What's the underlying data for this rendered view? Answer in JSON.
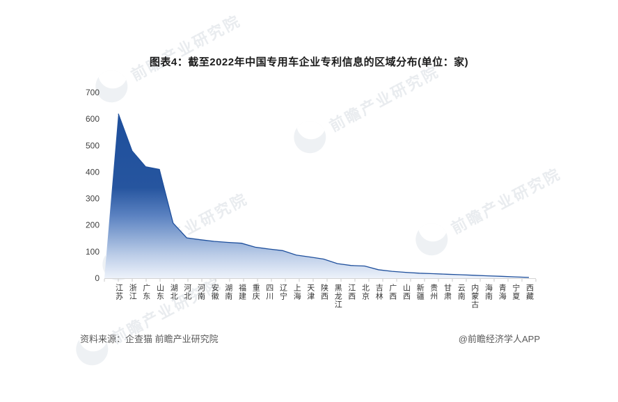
{
  "title": "图表4：截至2022年中国专用车企业专利信息的区域分布(单位：家)",
  "footer": {
    "source_note": "资料来源：企查猫 前瞻产业研究院",
    "credit": "@前瞻经济学人APP"
  },
  "watermark": {
    "text": "前瞻产业研究院"
  },
  "chart_data": {
    "type": "area",
    "title": "图表4：截至2022年中国专用车企业专利信息的区域分布(单位：家)",
    "unit": "家",
    "categories": [
      "江苏",
      "浙江",
      "广东",
      "山东",
      "湖北",
      "河北",
      "河南",
      "安徽",
      "湖南",
      "福建",
      "重庆",
      "四川",
      "辽宁",
      "上海",
      "天津",
      "陕西",
      "黑龙江",
      "江西",
      "北京",
      "吉林",
      "广西",
      "山西",
      "新疆",
      "贵州",
      "甘肃",
      "云南",
      "内蒙古",
      "海南",
      "青海",
      "宁夏",
      "西藏"
    ],
    "values": [
      620,
      480,
      420,
      410,
      208,
      152,
      145,
      139,
      135,
      132,
      117,
      110,
      104,
      87,
      80,
      72,
      55,
      48,
      46,
      32,
      26,
      22,
      19,
      17,
      15,
      13,
      11,
      9,
      7,
      5,
      3
    ],
    "ylim": [
      0,
      700
    ],
    "yticks": [
      0,
      100,
      200,
      300,
      400,
      500,
      600,
      700
    ],
    "grid": false,
    "legend": "none",
    "colors": {
      "axis_line": "#d3d3d3",
      "tick_mark": "#c8c8c8",
      "tick_label": "#3f3f3f",
      "line_stroke": "#1e4f9c",
      "gradient_stops": [
        {
          "offset": 0.0,
          "color": "#1e4f9c"
        },
        {
          "offset": 0.45,
          "color": "#26559f"
        },
        {
          "offset": 0.62,
          "color": "#5b82c1"
        },
        {
          "offset": 0.75,
          "color": "#8fabd6"
        },
        {
          "offset": 0.86,
          "color": "#bccde8"
        },
        {
          "offset": 1.0,
          "color": "#edf2fa"
        }
      ]
    }
  }
}
